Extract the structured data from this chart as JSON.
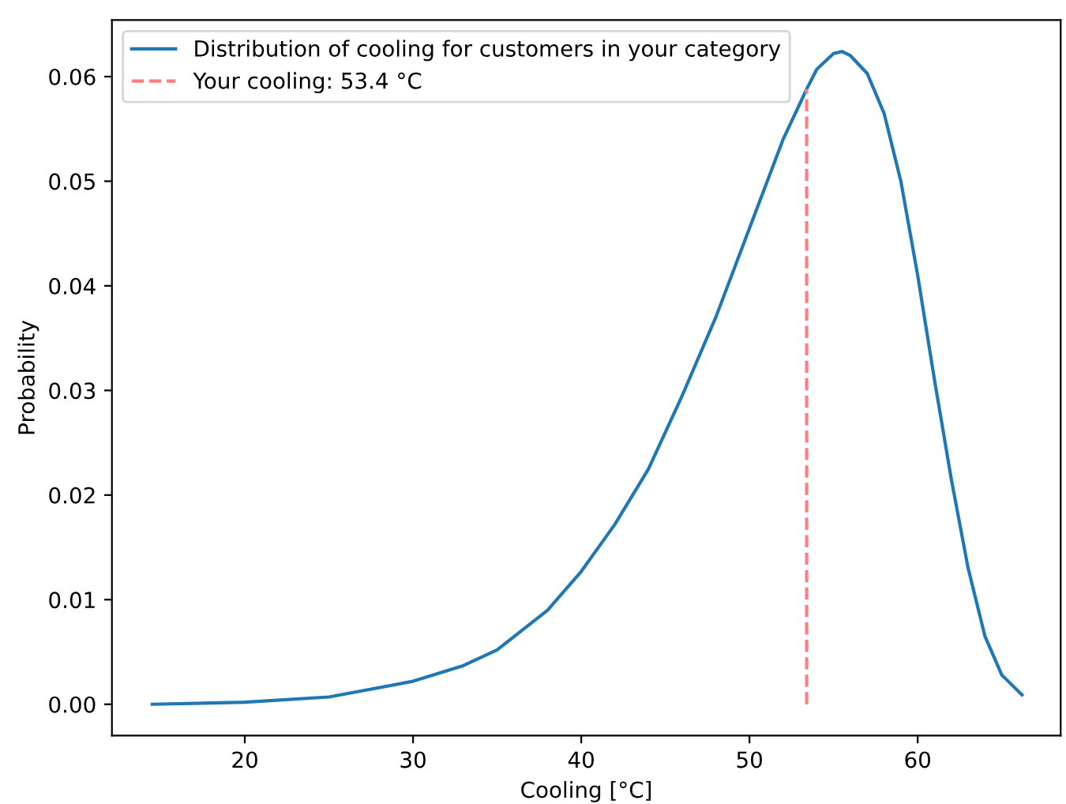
{
  "chart_data": {
    "type": "line",
    "xlabel": "Cooling [°C]",
    "ylabel": "Probability",
    "xlim": [
      12.1,
      68.5
    ],
    "xticks": [
      20,
      30,
      40,
      50,
      60
    ],
    "ylim": [
      -0.003,
      0.0654
    ],
    "yticks": [
      {
        "value": 0,
        "label": "0.00"
      },
      0.01,
      0.02,
      0.03,
      0.04,
      0.05,
      0.06
    ],
    "grid": false,
    "legend": "top left",
    "series": [
      {
        "name": "Distribution of cooling for customers in your category",
        "color": "#1f77b4",
        "line_style": "solid",
        "x": [
          14.5,
          20,
          25,
          30,
          33,
          35,
          38,
          40,
          42,
          44,
          46,
          48,
          50,
          52,
          53.4,
          54,
          55,
          55.5,
          56,
          57,
          58,
          59,
          60,
          61,
          62,
          63,
          64,
          65,
          66.2
        ],
        "values": [
          0.0,
          0.0002,
          0.0007,
          0.0022,
          0.0037,
          0.0052,
          0.009,
          0.0127,
          0.0172,
          0.0225,
          0.0295,
          0.037,
          0.0455,
          0.054,
          0.0588,
          0.0607,
          0.0622,
          0.0624,
          0.062,
          0.0603,
          0.0565,
          0.05,
          0.041,
          0.031,
          0.0215,
          0.013,
          0.0065,
          0.0028,
          0.0009
        ]
      },
      {
        "name": "Your cooling: 53.4 °C",
        "color": "#ff7f7f",
        "line_style": "dashed",
        "x": [
          53.4,
          53.4
        ],
        "values": [
          0.0,
          0.0588
        ]
      }
    ]
  }
}
